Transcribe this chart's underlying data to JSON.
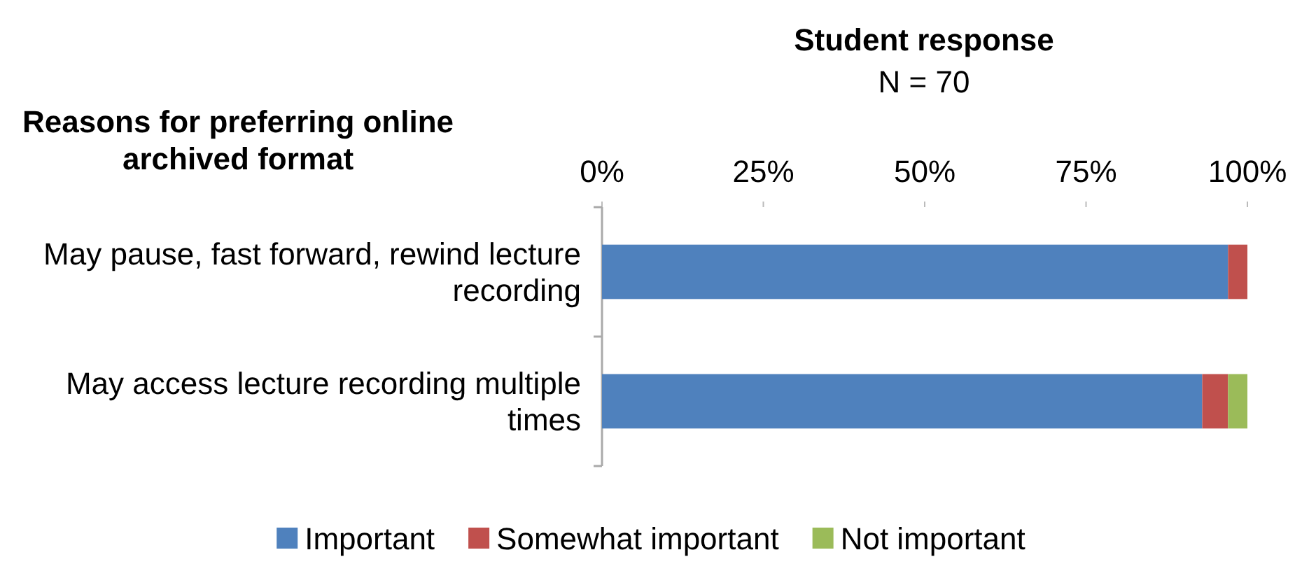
{
  "chart_data": {
    "type": "bar",
    "orientation": "horizontal",
    "stacked": true,
    "title": "Student response",
    "subtitle": "N = 70",
    "ylabel": "Reasons for preferring online archived format",
    "categories": [
      "May pause, fast forward, rewind lecture recording",
      "May access lecture recording multiple times"
    ],
    "series": [
      {
        "name": "Important",
        "color": "#4f81bd",
        "values": [
          97,
          93
        ]
      },
      {
        "name": "Somewhat important",
        "color": "#c0504d",
        "values": [
          3,
          4
        ]
      },
      {
        "name": "Not important",
        "color": "#9bbb59",
        "values": [
          0,
          3
        ]
      }
    ],
    "xlim": [
      0,
      100
    ],
    "xticks": [
      {
        "value": 0,
        "label": "0%"
      },
      {
        "value": 25,
        "label": "25%"
      },
      {
        "value": 50,
        "label": "50%"
      },
      {
        "value": 75,
        "label": "75%"
      },
      {
        "value": 100,
        "label": "100%"
      }
    ],
    "legend": "bottom",
    "grid": false
  }
}
